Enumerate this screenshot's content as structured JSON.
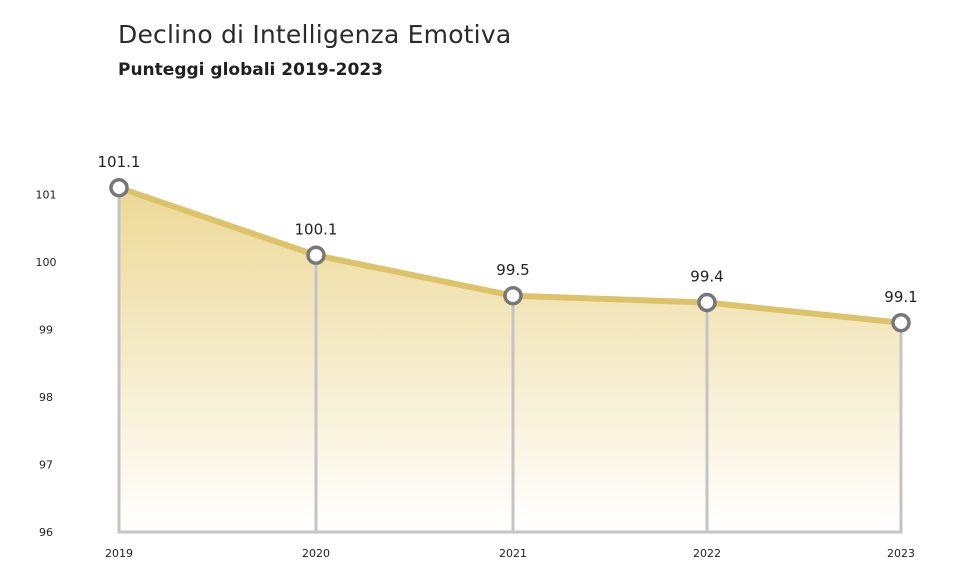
{
  "chart_data": {
    "type": "area",
    "title": "Declino di Intelligenza Emotiva",
    "subtitle": "Punteggi globali 2019-2023",
    "categories": [
      "2019",
      "2020",
      "2021",
      "2022",
      "2023"
    ],
    "values": [
      101.1,
      100.1,
      99.5,
      99.4,
      99.1
    ],
    "data_labels": [
      "101.1",
      "100.1",
      "99.5",
      "99.4",
      "99.1"
    ],
    "y_ticks": [
      96,
      97,
      98,
      99,
      100,
      101
    ],
    "ylim": [
      96,
      101.9
    ],
    "grid": false,
    "colors": {
      "line": "#dcc36a",
      "fill_top": "#ecd896",
      "fill_bottom": "#ffffff",
      "drop_lines": "#c4c4c4",
      "marker_stroke": "#777777"
    }
  }
}
